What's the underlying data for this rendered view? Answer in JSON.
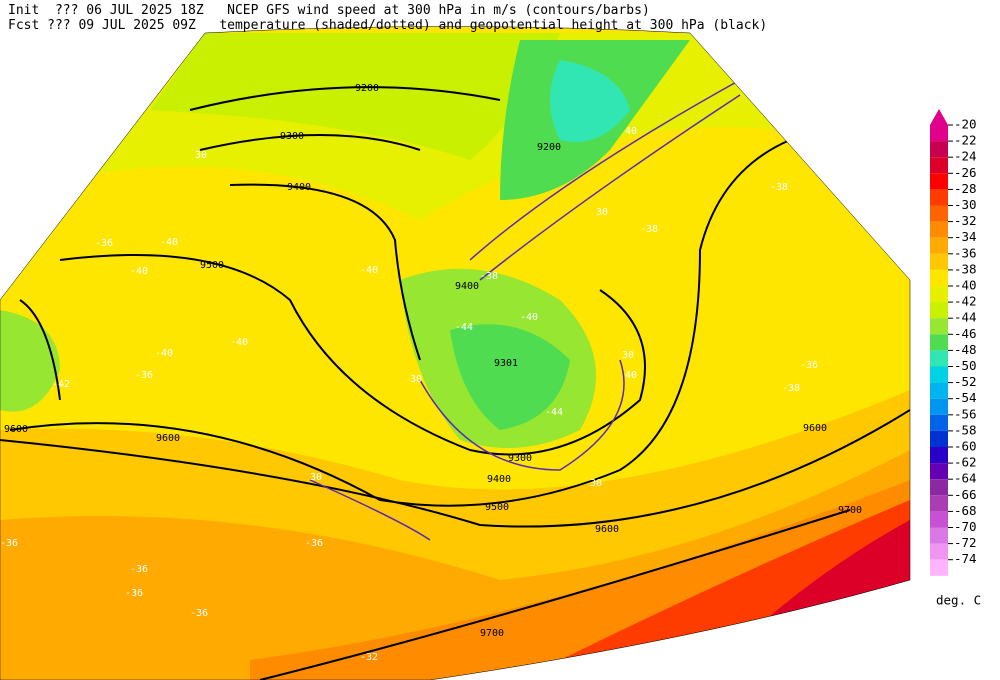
{
  "header": {
    "line1": "Init  ??? 06 JUL 2025 18Z   NCEP GFS wind speed at 300 hPa in m/s (contours/barbs)",
    "line2": "Fcst ??? 09 JUL 2025 09Z   temperature (shaded/dotted) and geopotential height at 300 hPa (black)"
  },
  "colorbar": {
    "levels": [
      -20,
      -22,
      -24,
      -26,
      -28,
      -30,
      -32,
      -34,
      -36,
      -38,
      -40,
      -42,
      -44,
      -46,
      -48,
      -50,
      -52,
      -54,
      -56,
      -58,
      -60,
      -62,
      -64,
      -66,
      -68,
      -70,
      -72,
      -74
    ],
    "colors": [
      "#e0008c",
      "#c80050",
      "#dc0028",
      "#ff0000",
      "#ff3c00",
      "#ff6400",
      "#ff8c00",
      "#ffaa00",
      "#ffc800",
      "#ffe600",
      "#e6f000",
      "#c8f000",
      "#96e632",
      "#50dc50",
      "#32e6b4",
      "#00d2e6",
      "#00b4f0",
      "#0096f0",
      "#0064e6",
      "#0032d2",
      "#2800c8",
      "#6400b4",
      "#8c28a0",
      "#aa3cb4",
      "#c850d2",
      "#dc78e6",
      "#f096f0",
      "#ffb4ff"
    ],
    "unit": "deg. C"
  },
  "height_labels": [
    "9200",
    "9200",
    "9300",
    "9400",
    "9500",
    "9600",
    "9600",
    "9400",
    "9301",
    "9300",
    "9400",
    "9500",
    "9600",
    "9600",
    "9700",
    "9700"
  ],
  "temperature_labels": [
    "-36",
    "-38",
    "-40",
    "-40",
    "-40",
    "-36",
    "-40",
    "-42",
    "-40",
    "-44",
    "-40",
    "-44",
    "-36",
    "-38",
    "-36",
    "-36",
    "-36",
    "-36",
    "-36",
    "-32",
    "-38",
    "-38"
  ],
  "wind_labels": [
    "30",
    "40",
    "30",
    "30",
    "30",
    "40",
    "30",
    "30"
  ]
}
